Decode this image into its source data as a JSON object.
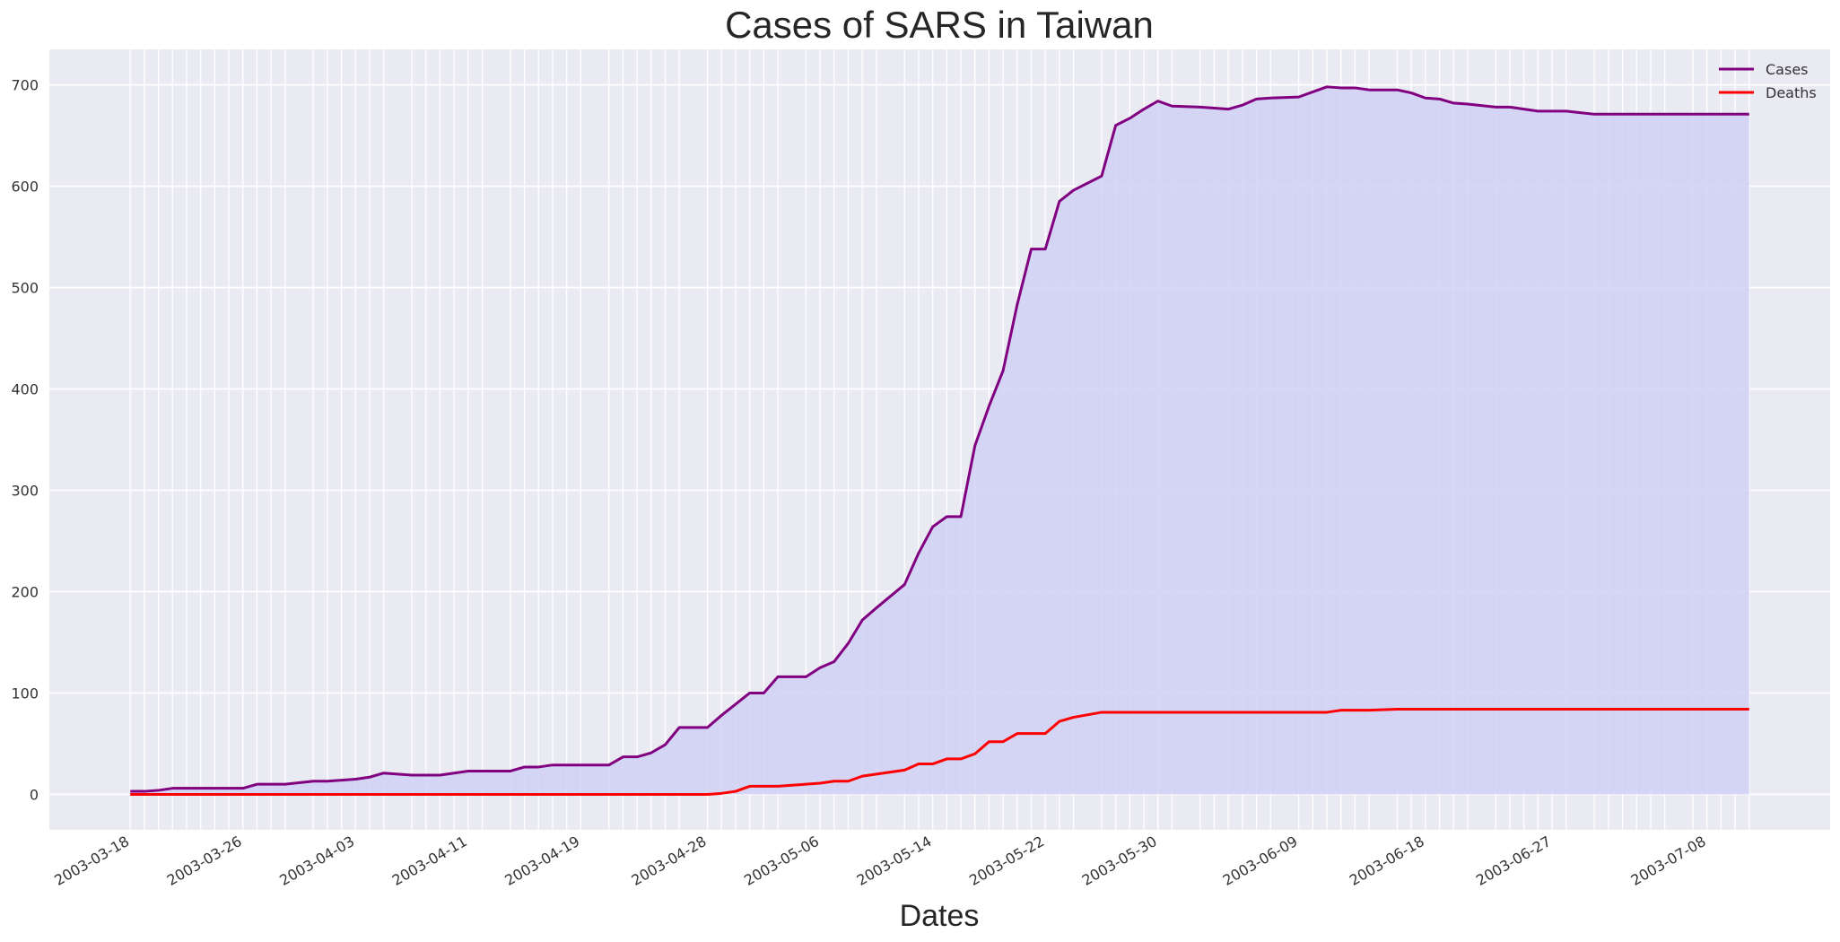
{
  "chart_data": {
    "type": "line",
    "title": "Cases of SARS in Taiwan",
    "xlabel": "Dates",
    "ylabel": "",
    "ylim": [
      -35,
      735
    ],
    "y_ticks": [
      0,
      100,
      200,
      300,
      400,
      500,
      600,
      700
    ],
    "x_tick_labels": [
      "2003-03-18",
      "2003-03-26",
      "2003-04-03",
      "2003-04-11",
      "2003-04-19",
      "2003-04-28",
      "2003-05-06",
      "2003-05-14",
      "2003-05-22",
      "2003-05-30",
      "2003-06-09",
      "2003-06-18",
      "2003-06-27",
      "2003-07-08"
    ],
    "grid": true,
    "legend_position": "top-right",
    "fill_under_series": "Cases",
    "fill_color": "#d0d0f5",
    "background_color": "#eaeaf2",
    "series": [
      {
        "name": "Cases",
        "color": "#800080",
        "points": [
          [
            "2003-03-18",
            3
          ],
          [
            "2003-03-19",
            3
          ],
          [
            "2003-03-20",
            4
          ],
          [
            "2003-03-21",
            6
          ],
          [
            "2003-03-22",
            6
          ],
          [
            "2003-03-23",
            6
          ],
          [
            "2003-03-24",
            6
          ],
          [
            "2003-03-25",
            6
          ],
          [
            "2003-03-26",
            6
          ],
          [
            "2003-03-27",
            10
          ],
          [
            "2003-03-28",
            10
          ],
          [
            "2003-03-29",
            10
          ],
          [
            "2003-03-31",
            13
          ],
          [
            "2003-04-01",
            13
          ],
          [
            "2003-04-02",
            14
          ],
          [
            "2003-04-03",
            15
          ],
          [
            "2003-04-04",
            17
          ],
          [
            "2003-04-05",
            21
          ],
          [
            "2003-04-07",
            19
          ],
          [
            "2003-04-08",
            19
          ],
          [
            "2003-04-09",
            19
          ],
          [
            "2003-04-10",
            21
          ],
          [
            "2003-04-11",
            23
          ],
          [
            "2003-04-12",
            23
          ],
          [
            "2003-04-14",
            23
          ],
          [
            "2003-04-15",
            27
          ],
          [
            "2003-04-16",
            27
          ],
          [
            "2003-04-17",
            29
          ],
          [
            "2003-04-18",
            29
          ],
          [
            "2003-04-19",
            29
          ],
          [
            "2003-04-21",
            29
          ],
          [
            "2003-04-22",
            37
          ],
          [
            "2003-04-23",
            37
          ],
          [
            "2003-04-24",
            41
          ],
          [
            "2003-04-25",
            49
          ],
          [
            "2003-04-26",
            66
          ],
          [
            "2003-04-28",
            66
          ],
          [
            "2003-04-29",
            78
          ],
          [
            "2003-04-30",
            89
          ],
          [
            "2003-05-01",
            100
          ],
          [
            "2003-05-02",
            100
          ],
          [
            "2003-05-03",
            116
          ],
          [
            "2003-05-05",
            116
          ],
          [
            "2003-05-06",
            125
          ],
          [
            "2003-05-07",
            131
          ],
          [
            "2003-05-08",
            149
          ],
          [
            "2003-05-09",
            172
          ],
          [
            "2003-05-10",
            184
          ],
          [
            "2003-05-12",
            207
          ],
          [
            "2003-05-13",
            238
          ],
          [
            "2003-05-14",
            264
          ],
          [
            "2003-05-15",
            274
          ],
          [
            "2003-05-16",
            274
          ],
          [
            "2003-05-17",
            344
          ],
          [
            "2003-05-18",
            383
          ],
          [
            "2003-05-19",
            418
          ],
          [
            "2003-05-20",
            483
          ],
          [
            "2003-05-21",
            538
          ],
          [
            "2003-05-22",
            538
          ],
          [
            "2003-05-23",
            585
          ],
          [
            "2003-05-24",
            596
          ],
          [
            "2003-05-26",
            610
          ],
          [
            "2003-05-27",
            660
          ],
          [
            "2003-05-28",
            667
          ],
          [
            "2003-05-29",
            676
          ],
          [
            "2003-05-30",
            684
          ],
          [
            "2003-05-31",
            679
          ],
          [
            "2003-06-02",
            678
          ],
          [
            "2003-06-03",
            677
          ],
          [
            "2003-06-04",
            676
          ],
          [
            "2003-06-05",
            680
          ],
          [
            "2003-06-06",
            686
          ],
          [
            "2003-06-07",
            687
          ],
          [
            "2003-06-09",
            688
          ],
          [
            "2003-06-10",
            693
          ],
          [
            "2003-06-11",
            698
          ],
          [
            "2003-06-12",
            697
          ],
          [
            "2003-06-13",
            697
          ],
          [
            "2003-06-14",
            695
          ],
          [
            "2003-06-16",
            695
          ],
          [
            "2003-06-17",
            692
          ],
          [
            "2003-06-18",
            687
          ],
          [
            "2003-06-19",
            686
          ],
          [
            "2003-06-20",
            682
          ],
          [
            "2003-06-21",
            681
          ],
          [
            "2003-06-23",
            678
          ],
          [
            "2003-06-24",
            678
          ],
          [
            "2003-06-25",
            676
          ],
          [
            "2003-06-26",
            674
          ],
          [
            "2003-06-27",
            674
          ],
          [
            "2003-06-28",
            674
          ],
          [
            "2003-06-30",
            671
          ],
          [
            "2003-07-01",
            671
          ],
          [
            "2003-07-02",
            671
          ],
          [
            "2003-07-03",
            671
          ],
          [
            "2003-07-04",
            671
          ],
          [
            "2003-07-05",
            671
          ],
          [
            "2003-07-07",
            671
          ],
          [
            "2003-07-08",
            671
          ],
          [
            "2003-07-09",
            671
          ],
          [
            "2003-07-10",
            671
          ],
          [
            "2003-07-11",
            671
          ]
        ]
      },
      {
        "name": "Deaths",
        "color": "#ff0000",
        "points": [
          [
            "2003-03-18",
            0
          ],
          [
            "2003-04-28",
            0
          ],
          [
            "2003-04-29",
            1
          ],
          [
            "2003-04-30",
            3
          ],
          [
            "2003-05-01",
            8
          ],
          [
            "2003-05-02",
            8
          ],
          [
            "2003-05-03",
            8
          ],
          [
            "2003-05-05",
            10
          ],
          [
            "2003-05-06",
            11
          ],
          [
            "2003-05-07",
            13
          ],
          [
            "2003-05-08",
            13
          ],
          [
            "2003-05-09",
            18
          ],
          [
            "2003-05-10",
            20
          ],
          [
            "2003-05-12",
            24
          ],
          [
            "2003-05-13",
            30
          ],
          [
            "2003-05-14",
            30
          ],
          [
            "2003-05-15",
            35
          ],
          [
            "2003-05-16",
            35
          ],
          [
            "2003-05-17",
            40
          ],
          [
            "2003-05-18",
            52
          ],
          [
            "2003-05-19",
            52
          ],
          [
            "2003-05-20",
            60
          ],
          [
            "2003-05-21",
            60
          ],
          [
            "2003-05-22",
            60
          ],
          [
            "2003-05-23",
            72
          ],
          [
            "2003-05-24",
            76
          ],
          [
            "2003-05-26",
            81
          ],
          [
            "2003-06-11",
            81
          ],
          [
            "2003-06-12",
            83
          ],
          [
            "2003-06-13",
            83
          ],
          [
            "2003-06-14",
            83
          ],
          [
            "2003-06-16",
            84
          ],
          [
            "2003-07-11",
            84
          ]
        ]
      }
    ]
  }
}
